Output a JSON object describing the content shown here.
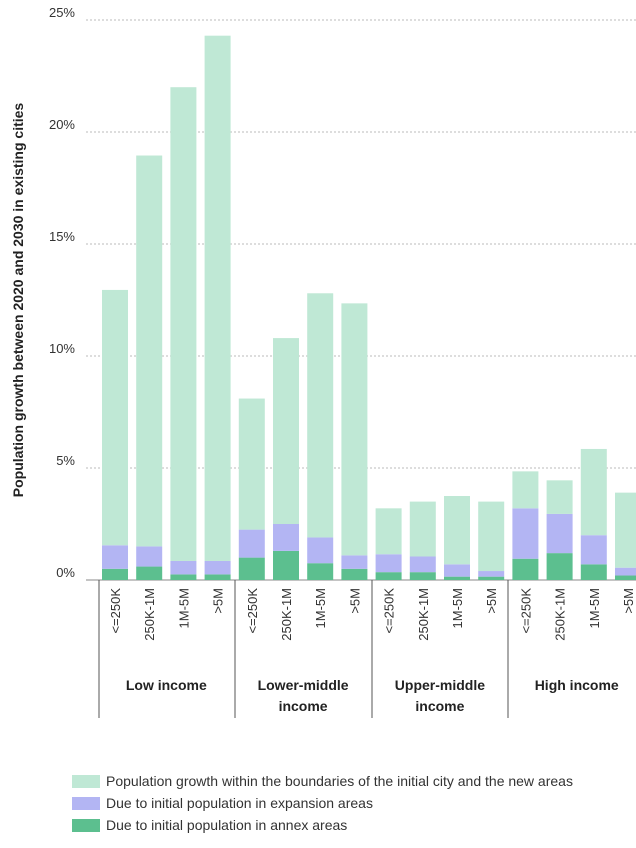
{
  "chart_data": {
    "type": "bar",
    "stacked": true,
    "title": "",
    "xlabel": "",
    "ylabel": "Population growth between 2020 and 2030 in existing cities",
    "ylim": [
      0,
      25
    ],
    "yticks": [
      "0%",
      "5%",
      "10%",
      "15%",
      "20%",
      "25%"
    ],
    "grid": true,
    "legend_position": "bottom",
    "groups": [
      {
        "name": "Low income",
        "categories": [
          "<=250K",
          "250K-1M",
          "1M-5M",
          ">5M"
        ]
      },
      {
        "name": "Lower-middle income",
        "categories": [
          "<=250K",
          "250K-1M",
          "1M-5M",
          ">5M"
        ]
      },
      {
        "name": "Upper-middle income",
        "categories": [
          "<=250K",
          "250K-1M",
          "1M-5M",
          ">5M"
        ]
      },
      {
        "name": "High income",
        "categories": [
          "<=250K",
          "250K-1M",
          "1M-5M",
          ">5M"
        ]
      }
    ],
    "categories": [
      "<=250K",
      "250K-1M",
      "1M-5M",
      ">5M",
      "<=250K",
      "250K-1M",
      "1M-5M",
      ">5M",
      "<=250K",
      "250K-1M",
      "1M-5M",
      ">5M",
      "<=250K",
      "250K-1M",
      "1M-5M",
      ">5M"
    ],
    "series": [
      {
        "name": "Due to initial population in annex areas",
        "color": "#5cbf8f",
        "values": [
          0.5,
          0.6,
          0.25,
          0.25,
          1.0,
          1.3,
          0.75,
          0.5,
          0.35,
          0.35,
          0.15,
          0.15,
          0.95,
          1.2,
          0.7,
          0.2
        ]
      },
      {
        "name": "Due to initial population in expansion areas",
        "color": "#b3b5f3",
        "values": [
          1.05,
          0.9,
          0.6,
          0.6,
          1.25,
          1.2,
          1.15,
          0.6,
          0.8,
          0.7,
          0.55,
          0.25,
          2.25,
          1.75,
          1.3,
          0.35
        ]
      },
      {
        "name": "Population growth within the boundaries of the initial city and the new areas",
        "color": "#bfe8d5",
        "values": [
          11.4,
          17.45,
          21.15,
          23.45,
          5.85,
          8.3,
          10.9,
          11.25,
          2.05,
          2.45,
          3.05,
          3.1,
          1.65,
          1.5,
          3.85,
          3.35
        ]
      }
    ],
    "legend_order": [
      2,
      1,
      0
    ]
  }
}
